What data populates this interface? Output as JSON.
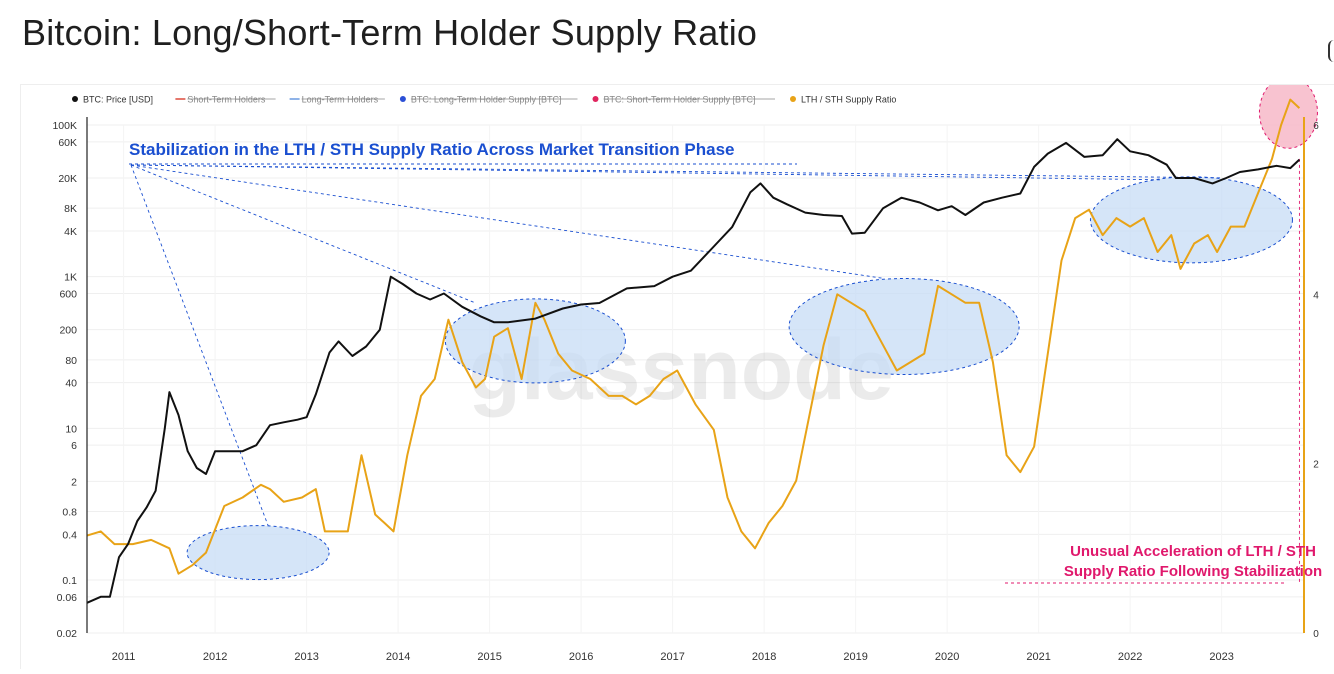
{
  "page": {
    "title": "Bitcoin: Long/Short-Term Holder Supply Ratio",
    "watermark": "glassnode"
  },
  "legend": [
    {
      "label": "BTC: Price [USD]",
      "color": "#111111",
      "marker": "dot",
      "struck": false
    },
    {
      "label": "Short-Term Holders",
      "color": "#e5786d",
      "marker": "line",
      "struck": true
    },
    {
      "label": "Long-Term Holders",
      "color": "#8fb3e8",
      "marker": "line",
      "struck": true
    },
    {
      "label": "BTC: Long-Term Holder Supply [BTC]",
      "color": "#2b4fd6",
      "marker": "dot",
      "struck": true
    },
    {
      "label": "BTC: Short-Term Holder Supply [BTC]",
      "color": "#e0245e",
      "marker": "dot",
      "struck": true
    },
    {
      "label": "LTH / STH Supply Ratio",
      "color": "#e8a317",
      "marker": "dot",
      "struck": false
    }
  ],
  "annotations": {
    "stabilization": "Stabilization in the LTH / STH Supply Ratio Across Market Transition Phase",
    "acceleration_line1": "Unusual Acceleration of LTH / STH",
    "acceleration_line2": "Supply Ratio Following Stabilization"
  },
  "colors": {
    "price": "#111111",
    "ratio": "#e8a317",
    "annotation_blue": "#1a4fd0",
    "annotation_pink": "#e0186c",
    "highlight_fill": "#c7dcf5",
    "highlight_pink_fill": "#f7b8c8"
  },
  "chart_data": {
    "type": "line",
    "x_axis": {
      "ticks": [
        "2011",
        "2012",
        "2013",
        "2014",
        "2015",
        "2016",
        "2017",
        "2018",
        "2019",
        "2020",
        "2021",
        "2022",
        "2023"
      ],
      "range": [
        2010.6,
        2023.9
      ]
    },
    "y_left": {
      "scale": "log",
      "range": [
        0.02,
        100000
      ],
      "ticks": [
        {
          "label": "100K",
          "value": 100000
        },
        {
          "label": "60K",
          "value": 60000
        },
        {
          "label": "20K",
          "value": 20000
        },
        {
          "label": "8K",
          "value": 8000
        },
        {
          "label": "4K",
          "value": 4000
        },
        {
          "label": "1K",
          "value": 1000
        },
        {
          "label": "600",
          "value": 600
        },
        {
          "label": "200",
          "value": 200
        },
        {
          "label": "80",
          "value": 80
        },
        {
          "label": "40",
          "value": 40
        },
        {
          "label": "10",
          "value": 10
        },
        {
          "label": "6",
          "value": 6
        },
        {
          "label": "2",
          "value": 2
        },
        {
          "label": "0.8",
          "value": 0.8
        },
        {
          "label": "0.4",
          "value": 0.4
        },
        {
          "label": "0.1",
          "value": 0.1
        },
        {
          "label": "0.06",
          "value": 0.06
        },
        {
          "label": "0.02",
          "value": 0.02
        }
      ]
    },
    "y_right": {
      "scale": "linear",
      "range": [
        0,
        6
      ],
      "ticks": [
        {
          "label": "0",
          "value": 0
        },
        {
          "label": "2",
          "value": 2
        },
        {
          "label": "4",
          "value": 4
        },
        {
          "label": "6",
          "value": 6
        }
      ]
    },
    "grid": true,
    "legend_position": "top-left",
    "series": [
      {
        "name": "BTC: Price [USD]",
        "axis": "left",
        "x": [
          2010.6,
          2010.75,
          2010.85,
          2010.95,
          2011.05,
          2011.15,
          2011.25,
          2011.35,
          2011.45,
          2011.5,
          2011.6,
          2011.7,
          2011.8,
          2011.9,
          2012.0,
          2012.15,
          2012.3,
          2012.45,
          2012.6,
          2012.75,
          2012.9,
          2013.0,
          2013.1,
          2013.25,
          2013.35,
          2013.5,
          2013.65,
          2013.8,
          2013.92,
          2014.05,
          2014.2,
          2014.35,
          2014.5,
          2014.7,
          2014.9,
          2015.05,
          2015.2,
          2015.5,
          2015.8,
          2016.0,
          2016.2,
          2016.5,
          2016.8,
          2017.0,
          2017.2,
          2017.45,
          2017.65,
          2017.85,
          2017.96,
          2018.1,
          2018.25,
          2018.45,
          2018.65,
          2018.85,
          2018.96,
          2019.1,
          2019.3,
          2019.5,
          2019.7,
          2019.9,
          2020.05,
          2020.2,
          2020.4,
          2020.6,
          2020.8,
          2020.95,
          2021.1,
          2021.3,
          2021.5,
          2021.7,
          2021.86,
          2022.0,
          2022.2,
          2022.4,
          2022.5,
          2022.7,
          2022.9,
          2023.05,
          2023.2,
          2023.4,
          2023.6,
          2023.75,
          2023.85
        ],
        "y": [
          0.05,
          0.06,
          0.06,
          0.2,
          0.3,
          0.6,
          0.9,
          1.5,
          10,
          30,
          15,
          5,
          3,
          2.5,
          5,
          5,
          5,
          6,
          11,
          12,
          13,
          14,
          28,
          100,
          140,
          90,
          120,
          200,
          1000,
          800,
          600,
          500,
          600,
          400,
          300,
          250,
          250,
          280,
          380,
          430,
          450,
          700,
          750,
          1000,
          1200,
          2500,
          4500,
          13000,
          17000,
          11000,
          9000,
          7000,
          6500,
          6300,
          3700,
          3800,
          8000,
          11000,
          9500,
          7500,
          8500,
          6500,
          9500,
          11000,
          12500,
          28000,
          42000,
          58000,
          38000,
          40000,
          65000,
          45000,
          40000,
          30000,
          20000,
          20000,
          17000,
          20000,
          24000,
          26000,
          29000,
          27000,
          35000
        ]
      },
      {
        "name": "LTH / STH Supply Ratio",
        "axis": "right",
        "x": [
          2010.6,
          2010.75,
          2010.9,
          2011.1,
          2011.3,
          2011.5,
          2011.6,
          2011.75,
          2011.9,
          2012.1,
          2012.3,
          2012.5,
          2012.6,
          2012.75,
          2012.95,
          2013.1,
          2013.2,
          2013.3,
          2013.45,
          2013.6,
          2013.75,
          2013.85,
          2013.95,
          2014.1,
          2014.25,
          2014.4,
          2014.55,
          2014.7,
          2014.85,
          2014.95,
          2015.05,
          2015.2,
          2015.35,
          2015.5,
          2015.6,
          2015.75,
          2015.9,
          2016.1,
          2016.3,
          2016.45,
          2016.6,
          2016.75,
          2016.9,
          2017.05,
          2017.25,
          2017.45,
          2017.6,
          2017.75,
          2017.9,
          2018.05,
          2018.2,
          2018.35,
          2018.5,
          2018.65,
          2018.8,
          2018.95,
          2019.1,
          2019.25,
          2019.45,
          2019.6,
          2019.75,
          2019.9,
          2020.05,
          2020.2,
          2020.35,
          2020.5,
          2020.65,
          2020.8,
          2020.95,
          2021.1,
          2021.25,
          2021.4,
          2021.55,
          2021.7,
          2021.85,
          2022.0,
          2022.15,
          2022.3,
          2022.45,
          2022.55,
          2022.7,
          2022.85,
          2022.95,
          2023.1,
          2023.25,
          2023.4,
          2023.55,
          2023.65,
          2023.75,
          2023.85
        ],
        "y": [
          1.15,
          1.2,
          1.05,
          1.05,
          1.1,
          1.0,
          0.7,
          0.8,
          0.95,
          1.5,
          1.6,
          1.75,
          1.7,
          1.55,
          1.6,
          1.7,
          1.2,
          1.2,
          1.2,
          2.1,
          1.4,
          1.3,
          1.2,
          2.1,
          2.8,
          3.0,
          3.7,
          3.2,
          2.9,
          3.0,
          3.5,
          3.6,
          3.0,
          3.9,
          3.7,
          3.3,
          3.1,
          3.0,
          2.8,
          2.8,
          2.7,
          2.8,
          3.0,
          3.1,
          2.7,
          2.4,
          1.6,
          1.2,
          1.0,
          1.3,
          1.5,
          1.8,
          2.6,
          3.4,
          4.0,
          3.9,
          3.8,
          3.5,
          3.1,
          3.2,
          3.3,
          4.1,
          4.0,
          3.9,
          3.9,
          3.2,
          2.1,
          1.9,
          2.2,
          3.3,
          4.4,
          4.9,
          5.0,
          4.7,
          4.9,
          4.8,
          4.9,
          4.5,
          4.7,
          4.3,
          4.6,
          4.7,
          4.5,
          4.8,
          4.8,
          5.2,
          5.6,
          6.0,
          6.3,
          6.2
        ]
      }
    ]
  }
}
